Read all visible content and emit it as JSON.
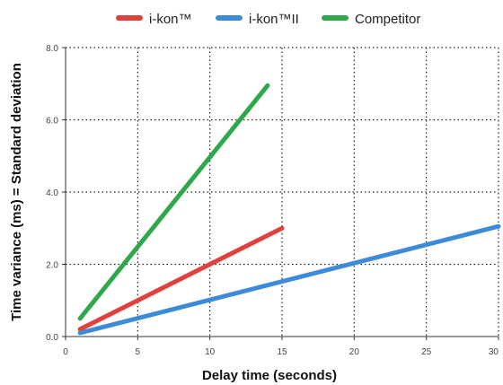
{
  "chart_data": {
    "type": "line",
    "xlabel": "Delay time (seconds)",
    "ylabel": "Time variance (ms) = Standard deviation",
    "xlim": [
      0,
      30
    ],
    "ylim": [
      0,
      8
    ],
    "x_ticks": [
      0,
      5,
      10,
      15,
      20,
      25,
      30
    ],
    "x_tick_labels": [
      "0",
      "5",
      "10",
      "15",
      "20",
      "25",
      "30"
    ],
    "y_ticks": [
      0,
      2,
      4,
      6,
      8
    ],
    "y_tick_labels": [
      "0.0",
      "2.0",
      "4.0",
      "6.0",
      "8.0"
    ],
    "grid": true,
    "grid_style": "dotted",
    "legend_position": "top-center",
    "series": [
      {
        "name": "i-kon™",
        "color": "#e0413a",
        "points": [
          [
            1,
            0.2
          ],
          [
            15,
            3.0
          ]
        ]
      },
      {
        "name": "i-kon™II",
        "color": "#3d8bd8",
        "points": [
          [
            1,
            0.1
          ],
          [
            30,
            3.05
          ]
        ]
      },
      {
        "name": "Competitor",
        "color": "#2ea84a",
        "points": [
          [
            1,
            0.5
          ],
          [
            14,
            6.95
          ]
        ]
      }
    ]
  }
}
